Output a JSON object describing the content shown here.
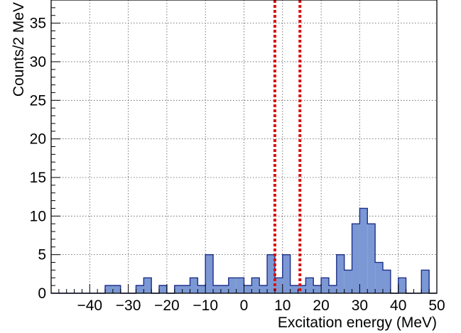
{
  "chart_data": {
    "type": "bar",
    "histogram": true,
    "xlabel": "Excitation energy (MeV)",
    "ylabel": "Counts/2 MeV",
    "xlim": [
      -50,
      50
    ],
    "ylim": [
      0,
      38
    ],
    "bin_width": 2,
    "bin_edges_start": -50,
    "values": [
      0,
      0,
      0,
      0,
      0,
      0,
      0,
      1,
      1,
      0,
      0,
      1,
      2,
      0,
      1,
      0,
      1,
      1,
      2,
      1,
      5,
      1,
      1,
      2,
      2,
      1,
      2,
      1,
      5,
      2,
      5,
      1,
      1,
      2,
      1,
      2,
      1,
      5,
      3,
      9,
      11,
      9,
      4,
      3,
      0,
      2,
      0,
      0,
      3,
      0
    ],
    "x_ticks": [
      -40,
      -30,
      -20,
      -10,
      0,
      10,
      20,
      30,
      40,
      50
    ],
    "x_tick_labels": [
      "−40",
      "−30",
      "−20",
      "−10",
      "0",
      "10",
      "20",
      "30",
      "40",
      "50"
    ],
    "y_ticks": [
      0,
      5,
      10,
      15,
      20,
      25,
      30,
      35
    ],
    "y_tick_labels": [
      "0",
      "5",
      "10",
      "15",
      "20",
      "25",
      "30",
      "35"
    ],
    "vertical_lines": [
      8,
      14.5
    ],
    "grid": true,
    "colors": {
      "fill": "#7b98d4",
      "outline": "#1f2f8a",
      "marker_line": "#dd1111",
      "grid": "#555555"
    }
  }
}
